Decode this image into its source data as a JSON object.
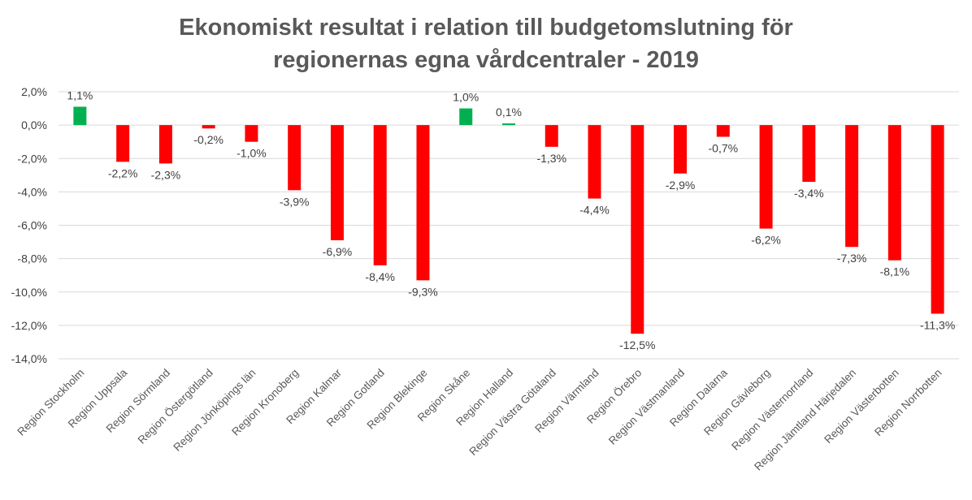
{
  "chart_data": {
    "type": "bar",
    "title_line1": "Ekonomiskt resultat i relation till budgetomslutning för",
    "title_line2": "regionernas egna vårdcentraler - 2019",
    "categories": [
      "Region Stockholm",
      "Region Uppsala",
      "Region Sörmland",
      "Region Östergötland",
      "Region Jönköpings län",
      "Region Kronoberg",
      "Region Kalmar",
      "Region Gotland",
      "Region Blekinge",
      "Region Skåne",
      "Region Halland",
      "Region Västra Götaland",
      "Region Värmland",
      "Region Örebro",
      "Region Västmanland",
      "Region Dalarna",
      "Region Gävleborg",
      "Region Västernorrland",
      "Region Jämtland Härjedalen",
      "Region Västerbotten",
      "Region Norrbotten"
    ],
    "values": [
      1.1,
      -2.2,
      -2.3,
      -0.2,
      -1.0,
      -3.9,
      -6.9,
      -8.4,
      -9.3,
      1.0,
      0.1,
      -1.3,
      -4.4,
      -12.5,
      -2.9,
      -0.7,
      -6.2,
      -3.4,
      -7.3,
      -8.1,
      -11.3
    ],
    "data_labels": [
      "1,1%",
      "-2,2%",
      "-2,3%",
      "-0,2%",
      "-1,0%",
      "-3,9%",
      "-6,9%",
      "-8,4%",
      "-9,3%",
      "1,0%",
      "0,1%",
      "-1,3%",
      "-4,4%",
      "-12,5%",
      "-2,9%",
      "-0,7%",
      "-6,2%",
      "-3,4%",
      "-7,3%",
      "-8,1%",
      "-11,3%"
    ],
    "yticks": [
      "2,0%",
      "0,0%",
      "-2,0%",
      "-4,0%",
      "-6,0%",
      "-8,0%",
      "-10,0%",
      "-12,0%",
      "-14,0%"
    ],
    "ylim": [
      -14,
      2
    ],
    "grid": true,
    "legend": "none",
    "colors": {
      "positive": "#00B050",
      "negative": "#FF0000",
      "title": "#595959",
      "grid": "#D9D9D9"
    }
  }
}
